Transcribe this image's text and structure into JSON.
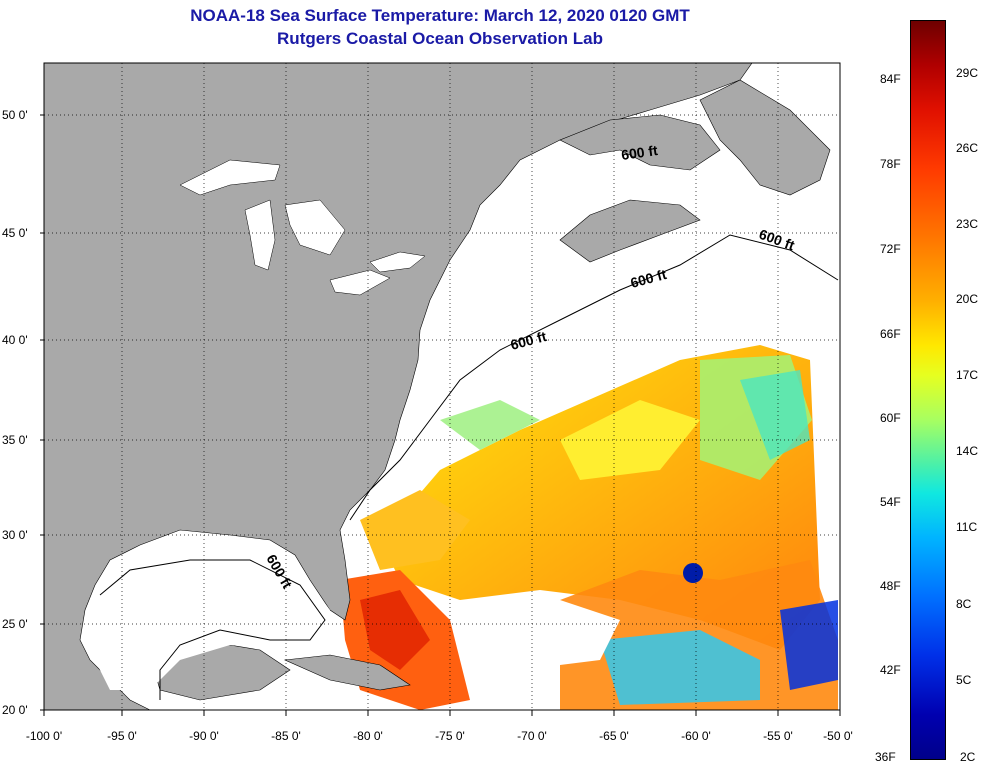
{
  "title_line1": "NOAA-18 Sea Surface Temperature:  March 12, 2020 0120 GMT",
  "title_line2": "Rutgers Coastal Ocean Observation Lab",
  "lat_labels": [
    "50 0'",
    "45 0'",
    "40 0'",
    "35 0'",
    "30 0'",
    "25 0'",
    "20 0'"
  ],
  "lon_labels": [
    "-100 0'",
    "-95 0'",
    "-90 0'",
    "-85 0'",
    "-80 0'",
    "-75 0'",
    "-70 0'",
    "-65 0'",
    "-60 0'",
    "-55 0'",
    "-50 0'"
  ],
  "contour_label": "600 ft",
  "colorbar": {
    "fahrenheit": [
      "84F",
      "78F",
      "72F",
      "66F",
      "60F",
      "54F",
      "48F",
      "42F",
      "36F"
    ],
    "celsius": [
      "29C",
      "26C",
      "23C",
      "20C",
      "17C",
      "14C",
      "11C",
      "8C",
      "5C",
      "2C"
    ]
  },
  "colors": {
    "land": "#a9a9a9",
    "title": "#1a1aa6",
    "ocean_nodata": "#ffffff"
  }
}
